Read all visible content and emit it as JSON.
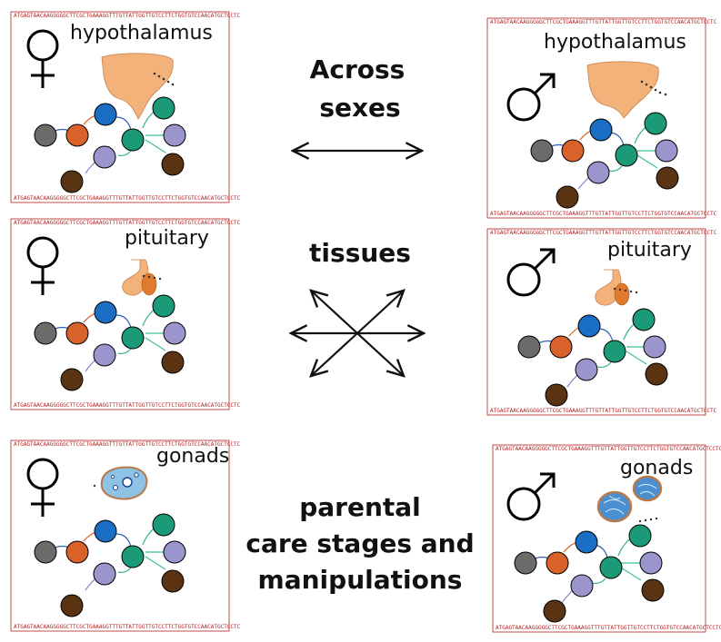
{
  "panels": [
    {
      "tissue": "hypothalamus",
      "sex": "female",
      "organ": "hypothalamus"
    },
    {
      "tissue": "pituitary",
      "sex": "female",
      "organ": "pituitary"
    },
    {
      "tissue": "gonads",
      "sex": "female",
      "organ": "ovary"
    },
    {
      "tissue": "hypothalamus",
      "sex": "male",
      "organ": "hypothalamus"
    },
    {
      "tissue": "pituitary",
      "sex": "male",
      "organ": "pituitary"
    },
    {
      "tissue": "gonads",
      "sex": "male",
      "organ": "testis"
    }
  ],
  "center": {
    "line1": "Across",
    "line2": "sexes",
    "tissues": "tissues",
    "care1": "parental",
    "care2": "care stages and",
    "care3": "manipulations"
  },
  "sequence": "ATGAGTAACAAGGGGGCTTCGCTGAAAGGTTTGTTATTGGTTGTCCTTCTGGTGTCCAACATGCTCCTC",
  "colors": {
    "border": "#b22222",
    "node_gray": "#6b6b6b",
    "node_orange": "#d9622b",
    "node_blue": "#1a6fc4",
    "node_teal": "#1c9a78",
    "node_lavender": "#9a95cc",
    "node_brown": "#5a3412",
    "edge_blue": "#2f5fb3",
    "edge_orange": "#d9622b",
    "edge_teal": "#37b08f",
    "edge_purple": "#8a7fc6",
    "edge_green": "#3fbf9a",
    "tissue_fill": "#f2b27a",
    "tissue_dark": "#e07a2e",
    "ovary_fill": "#8fc3e6",
    "testis_fill": "#4a8fcf"
  }
}
